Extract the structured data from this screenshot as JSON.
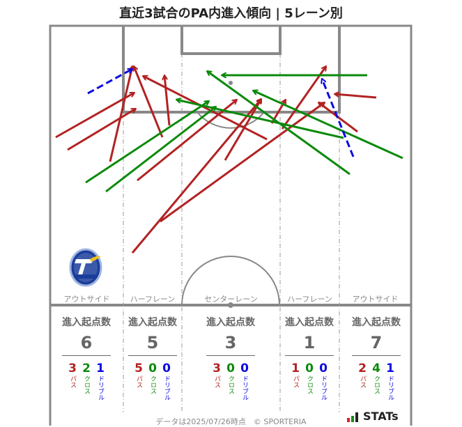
{
  "title": "直近3試合のPA内進入傾向 | 5レーン別",
  "colors": {
    "pass": "#b22222",
    "cross": "#0a8a0a",
    "dribble": "#0a0ae0",
    "pitch_line": "#888888"
  },
  "lanes": [
    {
      "label": "アウトサイド",
      "heading": "進入起点数",
      "total": "6",
      "pass": "3",
      "cross": "2",
      "dribble": "1"
    },
    {
      "label": "ハーフレーン",
      "heading": "進入起点数",
      "total": "5",
      "pass": "5",
      "cross": "0",
      "dribble": "0"
    },
    {
      "label": "センターレーン",
      "heading": "進入起点数",
      "total": "3",
      "pass": "3",
      "cross": "0",
      "dribble": "0"
    },
    {
      "label": "ハーフレーン",
      "heading": "進入起点数",
      "total": "1",
      "pass": "1",
      "cross": "0",
      "dribble": "0"
    },
    {
      "label": "アウトサイド",
      "heading": "進入起点数",
      "total": "7",
      "pass": "2",
      "cross": "4",
      "dribble": "1"
    }
  ],
  "labels": {
    "pass": "パス",
    "cross": "クロス",
    "dribble": "ドリブル"
  },
  "footer": "データは2025/07/26時点　© SPORTERIA",
  "brand": "STATs",
  "team_logo": "TRINITA 1994"
}
